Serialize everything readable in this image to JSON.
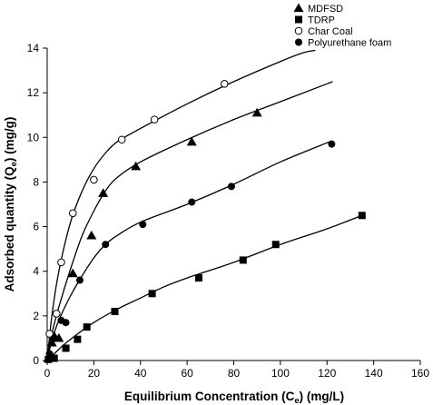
{
  "chart_data": {
    "type": "scatter",
    "title": "",
    "xlabel": {
      "main": "Equilibrium Concentration (C",
      "sub": "e",
      "unit": ") (mg/L)"
    },
    "ylabel": {
      "main": "Adsorbed quantity (Q",
      "sub": "e",
      "unit": ") (mg/g)"
    },
    "xlim": [
      0,
      160
    ],
    "ylim": [
      0,
      14
    ],
    "xticks": [
      "0",
      "20",
      "40",
      "60",
      "80",
      "100",
      "120",
      "140",
      "160"
    ],
    "yticks": [
      "0",
      "2",
      "4",
      "6",
      "8",
      "10",
      "12",
      "14"
    ],
    "grid": false,
    "legend_position": "top-right",
    "series": [
      {
        "name": "MDFSD",
        "marker": "triangle",
        "color": "#000000",
        "points": [
          [
            0.5,
            0.1
          ],
          [
            2,
            0.8
          ],
          [
            3,
            1.1
          ],
          [
            5,
            1.0
          ],
          [
            11,
            3.9
          ],
          [
            19,
            5.6
          ],
          [
            24,
            7.5
          ],
          [
            38,
            8.7
          ],
          [
            62,
            9.8
          ],
          [
            90,
            11.1
          ]
        ],
        "fit": [
          [
            0,
            0
          ],
          [
            2,
            1.2
          ],
          [
            5,
            2.4
          ],
          [
            10,
            4.1
          ],
          [
            15,
            5.6
          ],
          [
            20,
            6.7
          ],
          [
            25,
            7.6
          ],
          [
            30,
            8.2
          ],
          [
            40,
            8.9
          ],
          [
            60,
            9.9
          ],
          [
            80,
            10.8
          ],
          [
            100,
            11.6
          ],
          [
            120,
            12.4
          ],
          [
            122,
            12.5
          ]
        ]
      },
      {
        "name": "TDRP",
        "marker": "square",
        "color": "#000000",
        "points": [
          [
            0.5,
            0.05
          ],
          [
            3,
            0.1
          ],
          [
            8,
            0.55
          ],
          [
            13,
            0.95
          ],
          [
            17,
            1.5
          ],
          [
            29,
            2.2
          ],
          [
            45,
            3.0
          ],
          [
            65,
            3.7
          ],
          [
            84,
            4.5
          ],
          [
            98,
            5.2
          ],
          [
            135,
            6.5
          ]
        ],
        "fit": [
          [
            0,
            0
          ],
          [
            5,
            0.5
          ],
          [
            10,
            0.95
          ],
          [
            20,
            1.7
          ],
          [
            30,
            2.3
          ],
          [
            40,
            2.8
          ],
          [
            50,
            3.3
          ],
          [
            60,
            3.7
          ],
          [
            80,
            4.4
          ],
          [
            100,
            5.2
          ],
          [
            120,
            5.9
          ],
          [
            135,
            6.5
          ]
        ]
      },
      {
        "name": "Char Coal",
        "marker": "circle-open",
        "color": "#000000",
        "points": [
          [
            1,
            1.2
          ],
          [
            4,
            2.1
          ],
          [
            6,
            4.4
          ],
          [
            11,
            6.6
          ],
          [
            20,
            8.1
          ],
          [
            32,
            9.9
          ],
          [
            46,
            10.8
          ],
          [
            76,
            12.4
          ]
        ],
        "fit": [
          [
            0,
            0
          ],
          [
            2,
            2.0
          ],
          [
            5,
            4.0
          ],
          [
            10,
            6.2
          ],
          [
            15,
            7.6
          ],
          [
            20,
            8.6
          ],
          [
            25,
            9.3
          ],
          [
            30,
            9.8
          ],
          [
            40,
            10.4
          ],
          [
            60,
            11.5
          ],
          [
            80,
            12.5
          ],
          [
            100,
            13.4
          ],
          [
            110,
            13.8
          ],
          [
            115,
            13.9
          ]
        ]
      },
      {
        "name": "Polyurethane foam",
        "marker": "circle-filled",
        "color": "#000000",
        "points": [
          [
            1,
            0.3
          ],
          [
            3,
            1.0
          ],
          [
            6,
            1.8
          ],
          [
            8,
            1.7
          ],
          [
            14,
            3.6
          ],
          [
            25,
            5.2
          ],
          [
            41,
            6.1
          ],
          [
            62,
            7.1
          ],
          [
            79,
            7.8
          ],
          [
            122,
            9.7
          ]
        ],
        "fit": [
          [
            0,
            0
          ],
          [
            2,
            0.9
          ],
          [
            5,
            1.8
          ],
          [
            10,
            2.9
          ],
          [
            15,
            3.8
          ],
          [
            20,
            4.6
          ],
          [
            25,
            5.2
          ],
          [
            30,
            5.6
          ],
          [
            40,
            6.2
          ],
          [
            60,
            7.0
          ],
          [
            80,
            7.9
          ],
          [
            100,
            8.9
          ],
          [
            121,
            9.8
          ]
        ]
      }
    ]
  }
}
